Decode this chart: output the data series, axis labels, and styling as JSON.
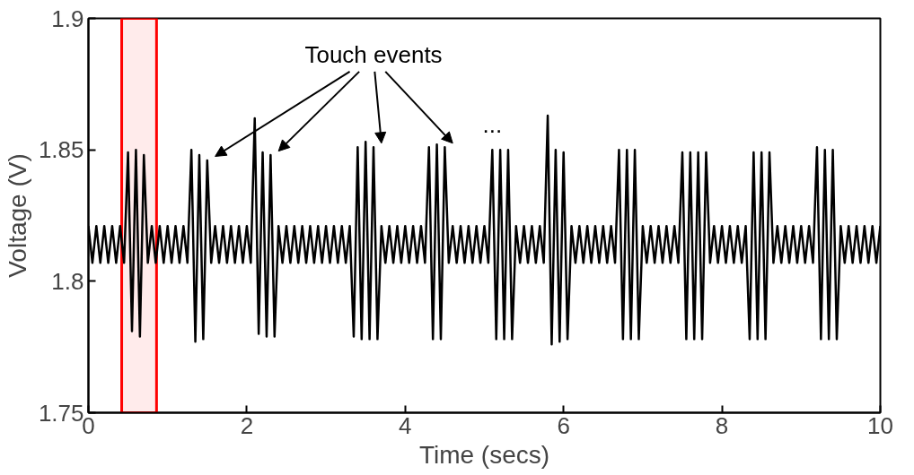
{
  "chart_data": {
    "type": "line",
    "xlabel": "Time (secs)",
    "ylabel": "Voltage (V)",
    "xlim": [
      0,
      10
    ],
    "ylim": [
      1.75,
      1.9
    ],
    "xticks": [
      0,
      2,
      4,
      6,
      8,
      10
    ],
    "yticks": [
      1.75,
      1.8,
      1.85,
      1.9
    ],
    "grid": false,
    "marker": "none",
    "line_style": "solid",
    "annotations": [
      "Touch events",
      "..."
    ],
    "bands": [
      {
        "axis": "x",
        "from": 0.42,
        "to": 0.86,
        "color": "#ff0000"
      }
    ],
    "series": [
      {
        "color": "#000000",
        "x": [
          0,
          0.05,
          0.1,
          0.15,
          0.2,
          0.25,
          0.3,
          0.35,
          0.4,
          0.45,
          0.5,
          0.55,
          0.6,
          0.65,
          0.7,
          0.75,
          0.8,
          0.85,
          0.9,
          0.95,
          1,
          1.05,
          1.1,
          1.15,
          1.2,
          1.25,
          1.3,
          1.35,
          1.4,
          1.45,
          1.5,
          1.55,
          1.6,
          1.65,
          1.7,
          1.75,
          1.8,
          1.85,
          1.9,
          1.95,
          2,
          2.05,
          2.1,
          2.15,
          2.2,
          2.25,
          2.3,
          2.35,
          2.4,
          2.45,
          2.5,
          2.55,
          2.6,
          2.65,
          2.7,
          2.75,
          2.8,
          2.85,
          2.9,
          2.95,
          3,
          3.05,
          3.1,
          3.15,
          3.2,
          3.25,
          3.3,
          3.35,
          3.4,
          3.45,
          3.5,
          3.55,
          3.6,
          3.65,
          3.7,
          3.75,
          3.8,
          3.85,
          3.9,
          3.95,
          4,
          4.05,
          4.1,
          4.15,
          4.2,
          4.25,
          4.3,
          4.35,
          4.4,
          4.45,
          4.5,
          4.55,
          4.6,
          4.65,
          4.7,
          4.75,
          4.8,
          4.85,
          4.9,
          4.95,
          5,
          5.05,
          5.1,
          5.15,
          5.2,
          5.25,
          5.3,
          5.35,
          5.4,
          5.45,
          5.5,
          5.55,
          5.6,
          5.65,
          5.7,
          5.75,
          5.8,
          5.85,
          5.9,
          5.95,
          6,
          6.05,
          6.1,
          6.15,
          6.2,
          6.25,
          6.3,
          6.35,
          6.4,
          6.45,
          6.5,
          6.55,
          6.6,
          6.65,
          6.7,
          6.75,
          6.8,
          6.85,
          6.9,
          6.95,
          7,
          7.05,
          7.1,
          7.15,
          7.2,
          7.25,
          7.3,
          7.35,
          7.4,
          7.45,
          7.5,
          7.55,
          7.6,
          7.65,
          7.7,
          7.75,
          7.8,
          7.85,
          7.9,
          7.95,
          8,
          8.05,
          8.1,
          8.15,
          8.2,
          8.25,
          8.3,
          8.35,
          8.4,
          8.45,
          8.5,
          8.55,
          8.6,
          8.65,
          8.7,
          8.75,
          8.8,
          8.85,
          8.9,
          8.95,
          9,
          9.05,
          9.1,
          9.15,
          9.2,
          9.25,
          9.3,
          9.35,
          9.4,
          9.45,
          9.5,
          9.55,
          9.6,
          9.65,
          9.7,
          9.75,
          9.8,
          9.85,
          9.9,
          9.95,
          10
        ],
        "values": [
          1.821,
          1.807,
          1.821,
          1.807,
          1.821,
          1.807,
          1.821,
          1.807,
          1.821,
          1.807,
          1.849,
          1.781,
          1.85,
          1.779,
          1.848,
          1.807,
          1.821,
          1.807,
          1.821,
          1.807,
          1.821,
          1.807,
          1.821,
          1.807,
          1.821,
          1.807,
          1.85,
          1.777,
          1.848,
          1.778,
          1.846,
          1.807,
          1.821,
          1.807,
          1.821,
          1.807,
          1.821,
          1.807,
          1.821,
          1.807,
          1.821,
          1.807,
          1.862,
          1.78,
          1.849,
          1.779,
          1.848,
          1.779,
          1.821,
          1.807,
          1.821,
          1.807,
          1.821,
          1.807,
          1.821,
          1.807,
          1.821,
          1.807,
          1.821,
          1.807,
          1.821,
          1.807,
          1.821,
          1.807,
          1.821,
          1.807,
          1.821,
          1.779,
          1.851,
          1.778,
          1.853,
          1.778,
          1.851,
          1.778,
          1.821,
          1.807,
          1.821,
          1.807,
          1.821,
          1.807,
          1.821,
          1.807,
          1.821,
          1.807,
          1.821,
          1.807,
          1.851,
          1.778,
          1.852,
          1.778,
          1.851,
          1.807,
          1.821,
          1.807,
          1.821,
          1.807,
          1.821,
          1.807,
          1.821,
          1.807,
          1.821,
          1.807,
          1.85,
          1.778,
          1.85,
          1.778,
          1.85,
          1.778,
          1.821,
          1.807,
          1.821,
          1.807,
          1.821,
          1.807,
          1.821,
          1.807,
          1.863,
          1.776,
          1.85,
          1.777,
          1.849,
          1.778,
          1.821,
          1.807,
          1.821,
          1.807,
          1.821,
          1.807,
          1.821,
          1.807,
          1.821,
          1.807,
          1.821,
          1.807,
          1.85,
          1.778,
          1.85,
          1.778,
          1.85,
          1.778,
          1.821,
          1.807,
          1.821,
          1.807,
          1.821,
          1.807,
          1.821,
          1.807,
          1.821,
          1.807,
          1.849,
          1.778,
          1.849,
          1.778,
          1.849,
          1.778,
          1.849,
          1.807,
          1.821,
          1.807,
          1.821,
          1.807,
          1.821,
          1.807,
          1.821,
          1.807,
          1.821,
          1.778,
          1.849,
          1.778,
          1.849,
          1.778,
          1.849,
          1.807,
          1.821,
          1.807,
          1.821,
          1.807,
          1.821,
          1.807,
          1.821,
          1.807,
          1.821,
          1.807,
          1.851,
          1.778,
          1.85,
          1.778,
          1.85,
          1.778,
          1.821,
          1.807,
          1.821,
          1.807,
          1.821,
          1.807,
          1.821,
          1.807,
          1.821,
          1.807,
          1.821
        ]
      }
    ]
  }
}
